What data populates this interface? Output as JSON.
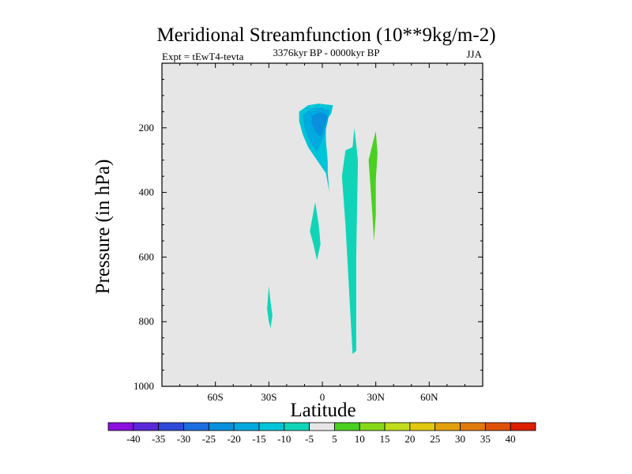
{
  "chart_data": {
    "type": "contour",
    "title": "Meridional Streamfunction (10**9kg/m-2)",
    "subtitle_left": "Expt = tEwT4-tevta",
    "subtitle_center": "3376kyr BP - 0000kyr BP",
    "subtitle_right": "JJA",
    "xlabel": "Latitude",
    "ylabel": "Pressure (in hPa)",
    "xlim": [
      -90,
      90
    ],
    "ylim": [
      1000,
      0
    ],
    "x_ticks": [
      {
        "value": -60,
        "label": "60S"
      },
      {
        "value": -30,
        "label": "30S"
      },
      {
        "value": 0,
        "label": "0"
      },
      {
        "value": 30,
        "label": "30N"
      },
      {
        "value": 60,
        "label": "60N"
      }
    ],
    "y_ticks": [
      {
        "value": 200,
        "label": "200"
      },
      {
        "value": 400,
        "label": "400"
      },
      {
        "value": 600,
        "label": "600"
      },
      {
        "value": 800,
        "label": "800"
      },
      {
        "value": 1000,
        "label": "1000"
      }
    ],
    "background_color": "#e6e6e6",
    "colorbar": {
      "levels": [
        -40,
        -35,
        -30,
        -25,
        -20,
        -15,
        -10,
        -5,
        5,
        10,
        15,
        20,
        25,
        30,
        35,
        40
      ],
      "colors": [
        "#8a10e0",
        "#5a28d8",
        "#3048d8",
        "#1c6ee0",
        "#0890dc",
        "#00aade",
        "#00c4d8",
        "#10d4b8",
        "#e6e6e6",
        "#4ad020",
        "#86d81a",
        "#c0dc1a",
        "#e2c80e",
        "#e2a00c",
        "#e07a0c",
        "#de5008",
        "#dc2000"
      ]
    },
    "regions": [
      {
        "name": "southern-subtropical-negative-cell-outer",
        "color": "#00c4d8",
        "points": [
          [
            -8,
            130
          ],
          [
            -2,
            125
          ],
          [
            6,
            130
          ],
          [
            5,
            155
          ],
          [
            2,
            180
          ],
          [
            2,
            240
          ],
          [
            3,
            300
          ],
          [
            3,
            340
          ],
          [
            4,
            400
          ],
          [
            2,
            340
          ],
          [
            -3,
            300
          ],
          [
            -8,
            260
          ],
          [
            -11,
            220
          ],
          [
            -13,
            180
          ],
          [
            -13,
            150
          ]
        ]
      },
      {
        "name": "southern-subtropical-negative-cell-mid",
        "color": "#00aade",
        "points": [
          [
            -6,
            140
          ],
          [
            -1,
            137
          ],
          [
            4,
            145
          ],
          [
            3,
            180
          ],
          [
            1,
            225
          ],
          [
            -3,
            275
          ],
          [
            -7,
            245
          ],
          [
            -10,
            200
          ],
          [
            -11,
            160
          ]
        ]
      },
      {
        "name": "southern-subtropical-negative-cell-core",
        "color": "#0890dc",
        "points": [
          [
            -3,
            155
          ],
          [
            0,
            152
          ],
          [
            3,
            165
          ],
          [
            1,
            200
          ],
          [
            -1,
            228
          ],
          [
            -4,
            210
          ],
          [
            -6,
            185
          ],
          [
            -6,
            165
          ]
        ]
      },
      {
        "name": "tropical-negative-patch",
        "color": "#10d4b8",
        "points": [
          [
            -4,
            430
          ],
          [
            -2,
            500
          ],
          [
            -1,
            560
          ],
          [
            -3,
            610
          ],
          [
            -5,
            560
          ],
          [
            -7,
            520
          ]
        ]
      },
      {
        "name": "southern-lower-negative-patch",
        "color": "#10d4b8",
        "points": [
          [
            -30,
            690
          ],
          [
            -29,
            740
          ],
          [
            -28,
            780
          ],
          [
            -29,
            820
          ],
          [
            -30,
            800
          ],
          [
            -31,
            760
          ]
        ]
      },
      {
        "name": "equatorial-negative-column",
        "color": "#10d4b8",
        "points": [
          [
            13,
            270
          ],
          [
            17,
            260
          ],
          [
            18,
            200
          ],
          [
            20,
            300
          ],
          [
            19,
            600
          ],
          [
            19,
            890
          ],
          [
            17,
            900
          ],
          [
            15,
            700
          ],
          [
            13,
            500
          ],
          [
            11,
            350
          ]
        ]
      },
      {
        "name": "northern-positive-patch",
        "color": "#4ad020",
        "points": [
          [
            30,
            210
          ],
          [
            31,
            280
          ],
          [
            30,
            360
          ],
          [
            30,
            470
          ],
          [
            29,
            550
          ],
          [
            28,
            460
          ],
          [
            27,
            380
          ],
          [
            26,
            300
          ]
        ]
      }
    ]
  }
}
